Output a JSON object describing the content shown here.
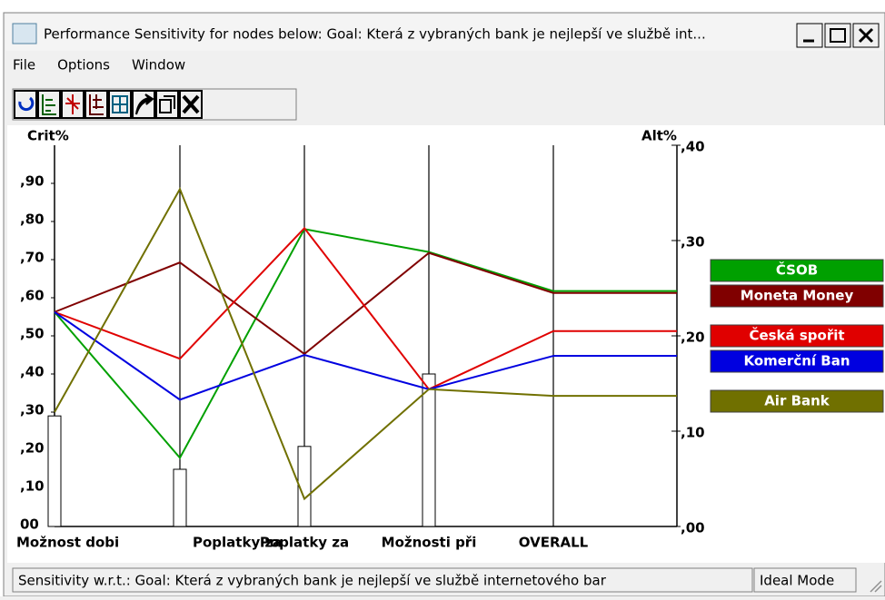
{
  "window": {
    "title": "Performance Sensitivity for nodes below: Goal: Která z vybraných bank je nejlepší ve službě int...",
    "menu": [
      "File",
      "Options",
      "Window"
    ]
  },
  "status": {
    "left": "Sensitivity w.r.t.: Goal: Která z vybraných bank je nejlepší ve službě internetového bar",
    "right": "Ideal Mode"
  },
  "chart_data": {
    "type": "line",
    "y_label": "Crit%",
    "y2_label": "Alt%",
    "categories": [
      "Možnost dobi",
      "Poplatky za",
      "Poplatky za",
      "Možnosti při",
      "OVERALL"
    ],
    "ylim": [
      0,
      1
    ],
    "yticks": [
      {
        "value": 0,
        "label": "00"
      },
      {
        "value": 0.1,
        "label": ",10"
      },
      {
        "value": 0.2,
        "label": ",20"
      },
      {
        "value": 0.3,
        "label": ",30"
      },
      {
        "value": 0.4,
        "label": ",40"
      },
      {
        "value": 0.5,
        "label": ",50"
      },
      {
        "value": 0.6,
        "label": ",60"
      },
      {
        "value": 0.7,
        "label": ",70"
      },
      {
        "value": 0.8,
        "label": ",80"
      },
      {
        "value": 0.9,
        "label": ",90"
      }
    ],
    "y2lim": [
      0,
      0.4
    ],
    "y2ticks": [
      {
        "value": 0,
        "label": ",00"
      },
      {
        "value": 0.1,
        "label": ",10"
      },
      {
        "value": 0.2,
        "label": ",20"
      },
      {
        "value": 0.3,
        "label": ",30"
      },
      {
        "value": 0.4,
        "label": ",40"
      }
    ],
    "bars": {
      "values": [
        0.29,
        0.15,
        0.21,
        0.4
      ],
      "color": "#ffffff"
    },
    "series": [
      {
        "name": "ČSOB",
        "color": "#00a000",
        "axis": "y2",
        "values": [
          0.225,
          0.072,
          0.312,
          0.288,
          0.247
        ]
      },
      {
        "name": "Moneta Money",
        "color": "#800000",
        "axis": "y2",
        "values": [
          0.225,
          0.277,
          0.181,
          0.287,
          0.245
        ]
      },
      {
        "name": "Česká spořit",
        "color": "#e00000",
        "axis": "y2",
        "values": [
          0.225,
          0.176,
          0.313,
          0.144,
          0.205
        ]
      },
      {
        "name": "Komerční Ban",
        "color": "#0000e0",
        "axis": "y2",
        "values": [
          0.225,
          0.133,
          0.18,
          0.144,
          0.179
        ]
      },
      {
        "name": "Air Bank",
        "color": "#707000",
        "axis": "y2",
        "values": [
          0.12,
          0.354,
          0.029,
          0.144,
          0.137
        ]
      }
    ]
  }
}
